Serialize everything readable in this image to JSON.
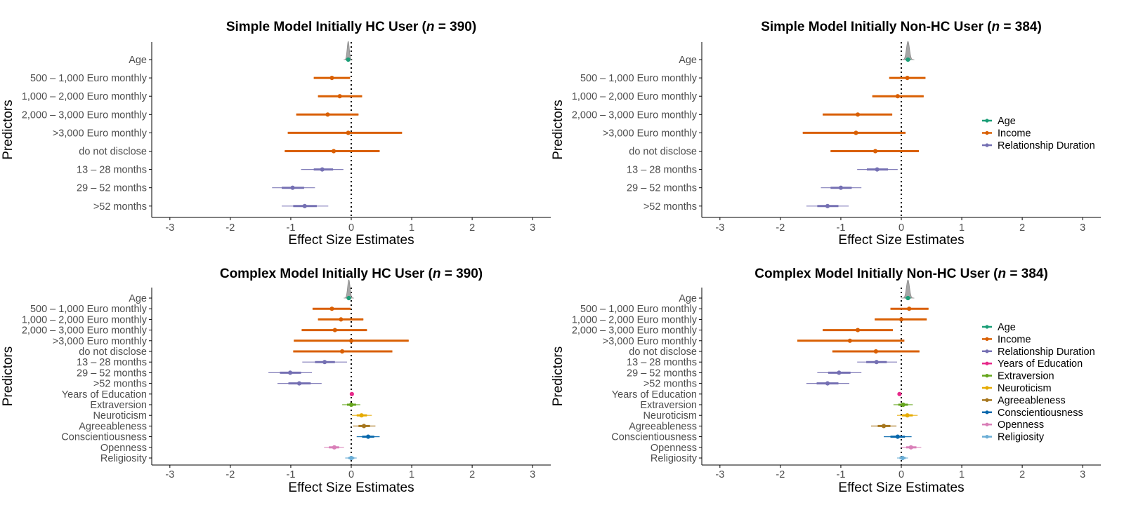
{
  "colors": {
    "Age": "#1b9e77",
    "Income": "#d95f02",
    "Relationship Duration": "#7570b3",
    "Years of Education": "#e7298a",
    "Extraversion": "#66a61e",
    "Neuroticism": "#e6ab02",
    "Agreeableness": "#a6761d",
    "Conscientiousness": "#0868ac",
    "Openness": "#d97fb8",
    "Religiosity": "#6baed6",
    "density": "#a6a6a6",
    "reference_line": "#000000",
    "axis": "#000000"
  },
  "legends": [
    {
      "items": [
        "Age",
        "Income",
        "Relationship Duration"
      ]
    },
    {
      "items": [
        "Age",
        "Income",
        "Relationship Duration",
        "Years of Education",
        "Extraversion",
        "Neuroticism",
        "Agreeableness",
        "Conscientiousness",
        "Openness",
        "Religiosity"
      ]
    }
  ],
  "chart_data": [
    {
      "type": "scatter",
      "title_pre": "Simple Model Initially HC User (",
      "title_n": "n",
      "title_post": " = 390)",
      "xlabel": "Effect Size Estimates",
      "ylabel": "Predictors",
      "xlim": [
        -3.3,
        3.3
      ],
      "xticks": [
        -3,
        -2,
        -1,
        0,
        1,
        2,
        3
      ],
      "reference_line": 0,
      "legend": "none",
      "predictors": [
        {
          "label": "Age",
          "group": "Age",
          "estimate": -0.05,
          "low": -0.09,
          "high": -0.02,
          "inner_low": -0.07,
          "inner_high": -0.03,
          "density": true
        },
        {
          "label": "500 – 1,000 Euro monthly",
          "group": "Income",
          "estimate": -0.32,
          "low": -0.62,
          "high": -0.02
        },
        {
          "label": "1,000 – 2,000 Euro monthly",
          "group": "Income",
          "estimate": -0.19,
          "low": -0.55,
          "high": 0.18
        },
        {
          "label": "2,000 – 3,000 Euro monthly",
          "group": "Income",
          "estimate": -0.39,
          "low": -0.91,
          "high": 0.12
        },
        {
          "label": ">3,000 Euro monthly",
          "group": "Income",
          "estimate": -0.05,
          "low": -1.05,
          "high": 0.84
        },
        {
          "label": "do not disclose",
          "group": "Income",
          "estimate": -0.29,
          "low": -1.1,
          "high": 0.47
        },
        {
          "label": "13 – 28 months",
          "group": "Relationship Duration",
          "estimate": -0.48,
          "low": -0.83,
          "high": -0.13,
          "inner_low": -0.62,
          "inner_high": -0.3
        },
        {
          "label": "29 – 52 months",
          "group": "Relationship Duration",
          "estimate": -0.97,
          "low": -1.31,
          "high": -0.6,
          "inner_low": -1.15,
          "inner_high": -0.78
        },
        {
          "label": ">52 months",
          "group": "Relationship Duration",
          "estimate": -0.77,
          "low": -1.15,
          "high": -0.38,
          "inner_low": -0.96,
          "inner_high": -0.57
        }
      ]
    },
    {
      "type": "scatter",
      "title_pre": "Simple Model Initially Non-HC User (",
      "title_n": "n",
      "title_post": " = 384)",
      "xlabel": "Effect Size Estimates",
      "ylabel": "Predictors",
      "xlim": [
        -3.3,
        3.3
      ],
      "xticks": [
        -3,
        -2,
        -1,
        0,
        1,
        2,
        3
      ],
      "reference_line": 0,
      "legend": "right",
      "predictors": [
        {
          "label": "Age",
          "group": "Age",
          "estimate": 0.11,
          "low": 0.06,
          "high": 0.16,
          "inner_low": 0.08,
          "inner_high": 0.14,
          "density": true
        },
        {
          "label": "500 – 1,000 Euro monthly",
          "group": "Income",
          "estimate": 0.1,
          "low": -0.2,
          "high": 0.4
        },
        {
          "label": "1,000 – 2,000 Euro monthly",
          "group": "Income",
          "estimate": -0.06,
          "low": -0.48,
          "high": 0.37
        },
        {
          "label": "2,000 – 3,000 Euro monthly",
          "group": "Income",
          "estimate": -0.72,
          "low": -1.3,
          "high": -0.15
        },
        {
          "label": ">3,000 Euro monthly",
          "group": "Income",
          "estimate": -0.75,
          "low": -1.63,
          "high": 0.07
        },
        {
          "label": "do not disclose",
          "group": "Income",
          "estimate": -0.43,
          "low": -1.17,
          "high": 0.29
        },
        {
          "label": "13 – 28 months",
          "group": "Relationship Duration",
          "estimate": -0.4,
          "low": -0.73,
          "high": -0.06,
          "inner_low": -0.57,
          "inner_high": -0.22
        },
        {
          "label": "29 – 52 months",
          "group": "Relationship Duration",
          "estimate": -1.0,
          "low": -1.33,
          "high": -0.66,
          "inner_low": -1.17,
          "inner_high": -0.82
        },
        {
          "label": ">52 months",
          "group": "Relationship Duration",
          "estimate": -1.22,
          "low": -1.57,
          "high": -0.87,
          "inner_low": -1.39,
          "inner_high": -1.04
        }
      ]
    },
    {
      "type": "scatter",
      "title_pre": "Complex Model Initially HC User (",
      "title_n": "n",
      "title_post": " = 390)",
      "xlabel": "Effect Size Estimates",
      "ylabel": "Predictors",
      "xlim": [
        -3.3,
        3.3
      ],
      "xticks": [
        -3,
        -2,
        -1,
        0,
        1,
        2,
        3
      ],
      "reference_line": 0,
      "legend": "none",
      "predictors": [
        {
          "label": "Age",
          "group": "Age",
          "estimate": -0.04,
          "low": -0.08,
          "high": 0.0,
          "inner_low": -0.06,
          "inner_high": -0.02,
          "density": true
        },
        {
          "label": "500 – 1,000 Euro monthly",
          "group": "Income",
          "estimate": -0.32,
          "low": -0.64,
          "high": -0.01
        },
        {
          "label": "1,000 – 2,000 Euro monthly",
          "group": "Income",
          "estimate": -0.17,
          "low": -0.55,
          "high": 0.2
        },
        {
          "label": "2,000 – 3,000 Euro monthly",
          "group": "Income",
          "estimate": -0.27,
          "low": -0.82,
          "high": 0.26
        },
        {
          "label": ">3,000 Euro monthly",
          "group": "Income",
          "estimate": 0.0,
          "low": -0.95,
          "high": 0.95
        },
        {
          "label": "do not disclose",
          "group": "Income",
          "estimate": -0.15,
          "low": -0.96,
          "high": 0.68
        },
        {
          "label": "13 – 28 months",
          "group": "Relationship Duration",
          "estimate": -0.44,
          "low": -0.81,
          "high": -0.07,
          "inner_low": -0.6,
          "inner_high": -0.27
        },
        {
          "label": "29 – 52 months",
          "group": "Relationship Duration",
          "estimate": -1.01,
          "low": -1.37,
          "high": -0.65,
          "inner_low": -1.18,
          "inner_high": -0.83
        },
        {
          "label": ">52 months",
          "group": "Relationship Duration",
          "estimate": -0.86,
          "low": -1.22,
          "high": -0.49,
          "inner_low": -1.04,
          "inner_high": -0.67
        },
        {
          "label": "Years of Education",
          "group": "Years of Education",
          "estimate": 0.01,
          "low": -0.02,
          "high": 0.04,
          "inner_low": -0.01,
          "inner_high": 0.03
        },
        {
          "label": "Extraversion",
          "group": "Extraversion",
          "estimate": 0.0,
          "low": -0.15,
          "high": 0.15,
          "inner_low": -0.07,
          "inner_high": 0.08
        },
        {
          "label": "Neuroticism",
          "group": "Neuroticism",
          "estimate": 0.17,
          "low": 0.01,
          "high": 0.34,
          "inner_low": 0.09,
          "inner_high": 0.26
        },
        {
          "label": "Agreeableness",
          "group": "Agreeableness",
          "estimate": 0.21,
          "low": 0.03,
          "high": 0.4,
          "inner_low": 0.12,
          "inner_high": 0.31
        },
        {
          "label": "Conscientiousness",
          "group": "Conscientiousness",
          "estimate": 0.28,
          "low": 0.09,
          "high": 0.47,
          "inner_low": 0.18,
          "inner_high": 0.38
        },
        {
          "label": "Openness",
          "group": "Openness",
          "estimate": -0.28,
          "low": -0.45,
          "high": -0.12,
          "inner_low": -0.37,
          "inner_high": -0.2
        },
        {
          "label": "Religiosity",
          "group": "Religiosity",
          "estimate": 0.0,
          "low": -0.1,
          "high": 0.09,
          "inner_low": -0.05,
          "inner_high": 0.05
        }
      ]
    },
    {
      "type": "scatter",
      "title_pre": "Complex Model Initially Non-HC User (",
      "title_n": "n",
      "title_post": " = 384)",
      "xlabel": "Effect Size Estimates",
      "ylabel": "Predictors",
      "xlim": [
        -3.3,
        3.3
      ],
      "xticks": [
        -3,
        -2,
        -1,
        0,
        1,
        2,
        3
      ],
      "reference_line": 0,
      "legend": "right",
      "predictors": [
        {
          "label": "Age",
          "group": "Age",
          "estimate": 0.11,
          "low": 0.06,
          "high": 0.16,
          "inner_low": 0.08,
          "inner_high": 0.14,
          "density": true
        },
        {
          "label": "500 – 1,000 Euro monthly",
          "group": "Income",
          "estimate": 0.13,
          "low": -0.18,
          "high": 0.45
        },
        {
          "label": "1,000 – 2,000 Euro monthly",
          "group": "Income",
          "estimate": 0.0,
          "low": -0.44,
          "high": 0.42
        },
        {
          "label": "2,000 – 3,000 Euro monthly",
          "group": "Income",
          "estimate": -0.72,
          "low": -1.3,
          "high": -0.14
        },
        {
          "label": ">3,000 Euro monthly",
          "group": "Income",
          "estimate": -0.85,
          "low": -1.72,
          "high": 0.05
        },
        {
          "label": "do not disclose",
          "group": "Income",
          "estimate": -0.42,
          "low": -1.14,
          "high": 0.3
        },
        {
          "label": "13 – 28 months",
          "group": "Relationship Duration",
          "estimate": -0.41,
          "low": -0.73,
          "high": -0.07,
          "inner_low": -0.58,
          "inner_high": -0.24
        },
        {
          "label": "29 – 52 months",
          "group": "Relationship Duration",
          "estimate": -1.03,
          "low": -1.39,
          "high": -0.66,
          "inner_low": -1.21,
          "inner_high": -0.84
        },
        {
          "label": ">52 months",
          "group": "Relationship Duration",
          "estimate": -1.22,
          "low": -1.57,
          "high": -0.86,
          "inner_low": -1.4,
          "inner_high": -1.04
        },
        {
          "label": "Years of Education",
          "group": "Years of Education",
          "estimate": -0.03,
          "low": -0.06,
          "high": 0.0,
          "inner_low": -0.05,
          "inner_high": -0.01
        },
        {
          "label": "Extraversion",
          "group": "Extraversion",
          "estimate": 0.03,
          "low": -0.13,
          "high": 0.19,
          "inner_low": -0.05,
          "inner_high": 0.11
        },
        {
          "label": "Neuroticism",
          "group": "Neuroticism",
          "estimate": 0.1,
          "low": -0.07,
          "high": 0.27,
          "inner_low": 0.01,
          "inner_high": 0.19
        },
        {
          "label": "Agreeableness",
          "group": "Agreeableness",
          "estimate": -0.29,
          "low": -0.5,
          "high": -0.08,
          "inner_low": -0.39,
          "inner_high": -0.18
        },
        {
          "label": "Conscientiousness",
          "group": "Conscientiousness",
          "estimate": -0.06,
          "low": -0.29,
          "high": 0.17,
          "inner_low": -0.18,
          "inner_high": 0.06
        },
        {
          "label": "Openness",
          "group": "Openness",
          "estimate": 0.16,
          "low": 0.0,
          "high": 0.33,
          "inner_low": 0.08,
          "inner_high": 0.25
        },
        {
          "label": "Religiosity",
          "group": "Religiosity",
          "estimate": 0.02,
          "low": -0.07,
          "high": 0.11,
          "inner_low": -0.03,
          "inner_high": 0.07
        }
      ]
    }
  ]
}
